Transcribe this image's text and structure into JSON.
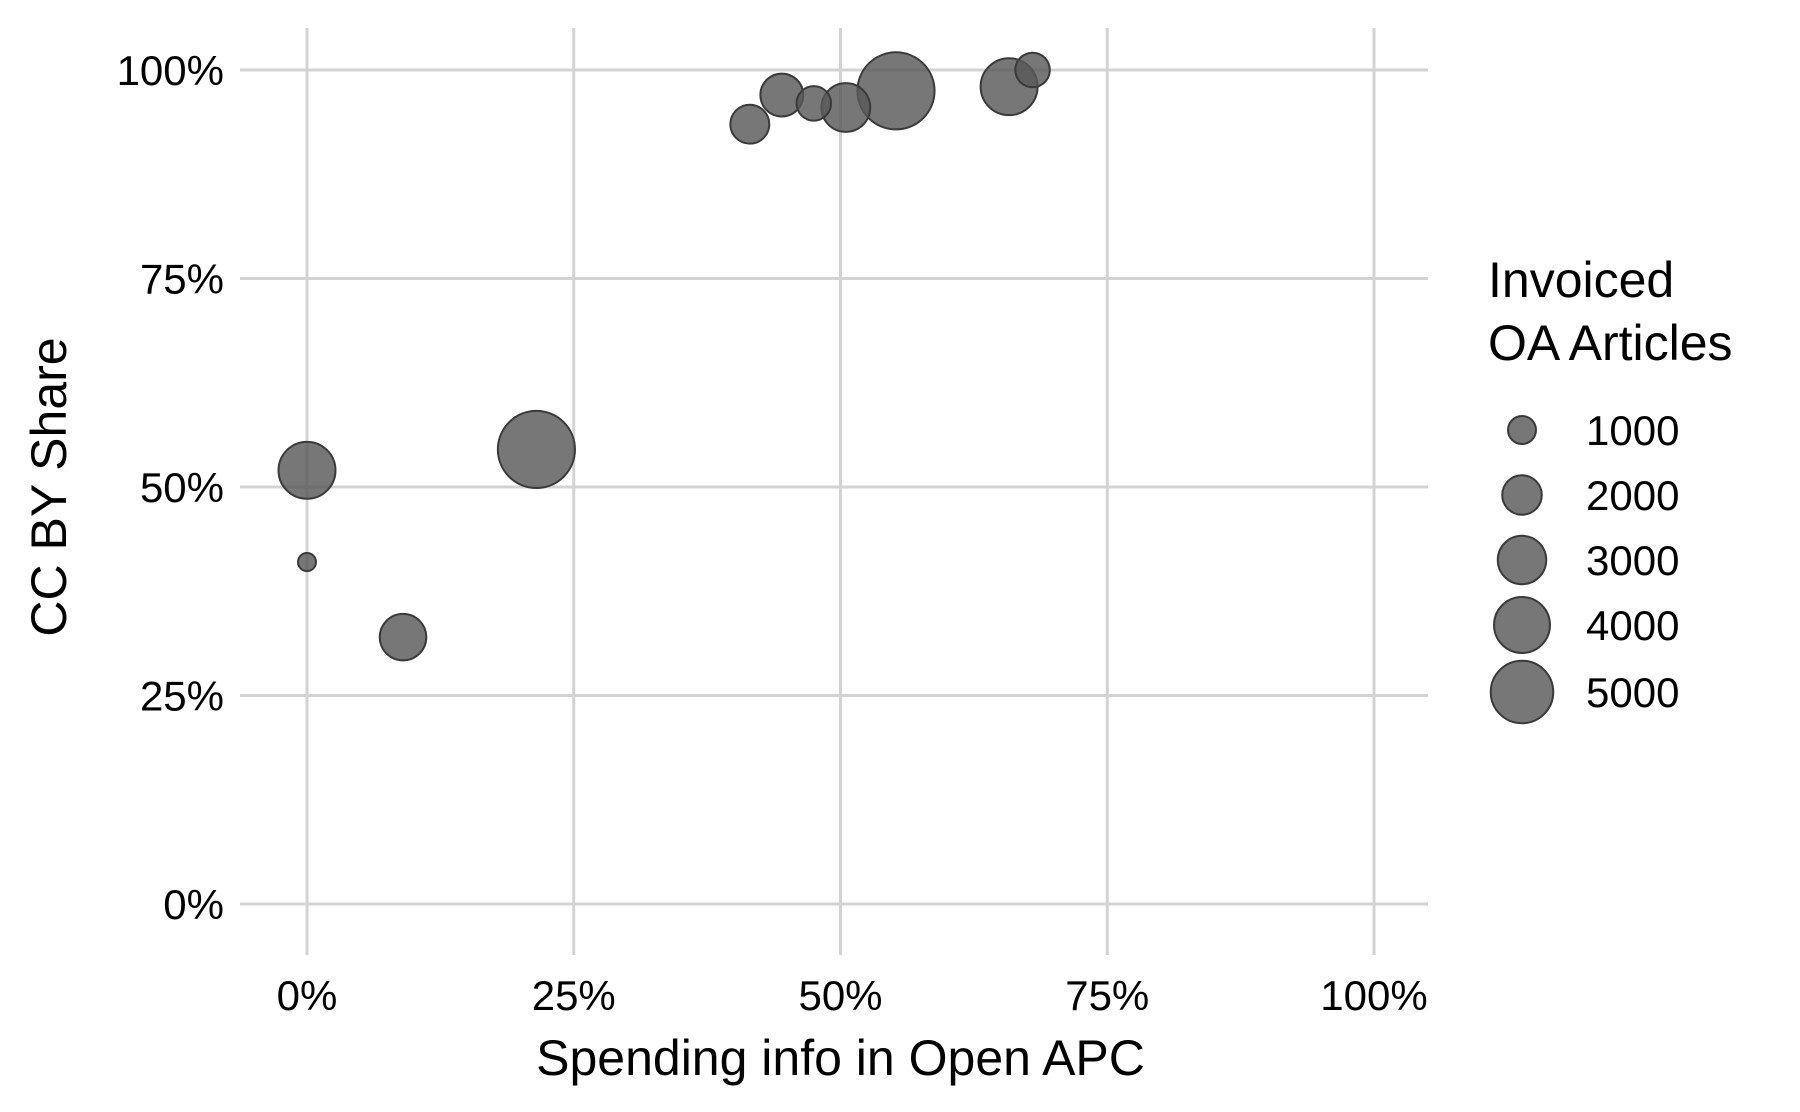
{
  "chart_data": {
    "type": "scatter",
    "title": "",
    "xlabel": "Spending info in Open APC",
    "ylabel": "CC BY Share",
    "xlim": [
      0,
      1
    ],
    "ylim": [
      0,
      1
    ],
    "x_ticks": [
      0,
      0.25,
      0.5,
      0.75,
      1.0
    ],
    "x_tick_labels": [
      "0%",
      "25%",
      "50%",
      "75%",
      "100%"
    ],
    "y_ticks": [
      0,
      0.25,
      0.5,
      0.75,
      1.0
    ],
    "y_tick_labels": [
      "0%",
      "25%",
      "50%",
      "75%",
      "100%"
    ],
    "grid": true,
    "legend": {
      "title_lines": [
        "Invoiced",
        "OA Articles"
      ],
      "placement": "right",
      "sizes": [
        1000,
        2000,
        3000,
        4000,
        5000
      ],
      "labels": [
        "1000",
        "2000",
        "3000",
        "4000",
        "5000"
      ]
    },
    "colors": {
      "point": "#595959",
      "point_stroke": "#3a3a3a",
      "grid": "#d3d3d3"
    },
    "points": [
      {
        "x": 0.0,
        "y": 0.52,
        "size": 3000
      },
      {
        "x": 0.0,
        "y": 0.41,
        "size": 300
      },
      {
        "x": 0.09,
        "y": 0.32,
        "size": 2000
      },
      {
        "x": 0.215,
        "y": 0.545,
        "size": 5500
      },
      {
        "x": 0.415,
        "y": 0.935,
        "size": 1400
      },
      {
        "x": 0.445,
        "y": 0.97,
        "size": 1700
      },
      {
        "x": 0.475,
        "y": 0.96,
        "size": 1100
      },
      {
        "x": 0.505,
        "y": 0.955,
        "size": 2200
      },
      {
        "x": 0.552,
        "y": 0.975,
        "size": 5500
      },
      {
        "x": 0.658,
        "y": 0.98,
        "size": 3000
      },
      {
        "x": 0.68,
        "y": 1.0,
        "size": 1100
      }
    ]
  }
}
